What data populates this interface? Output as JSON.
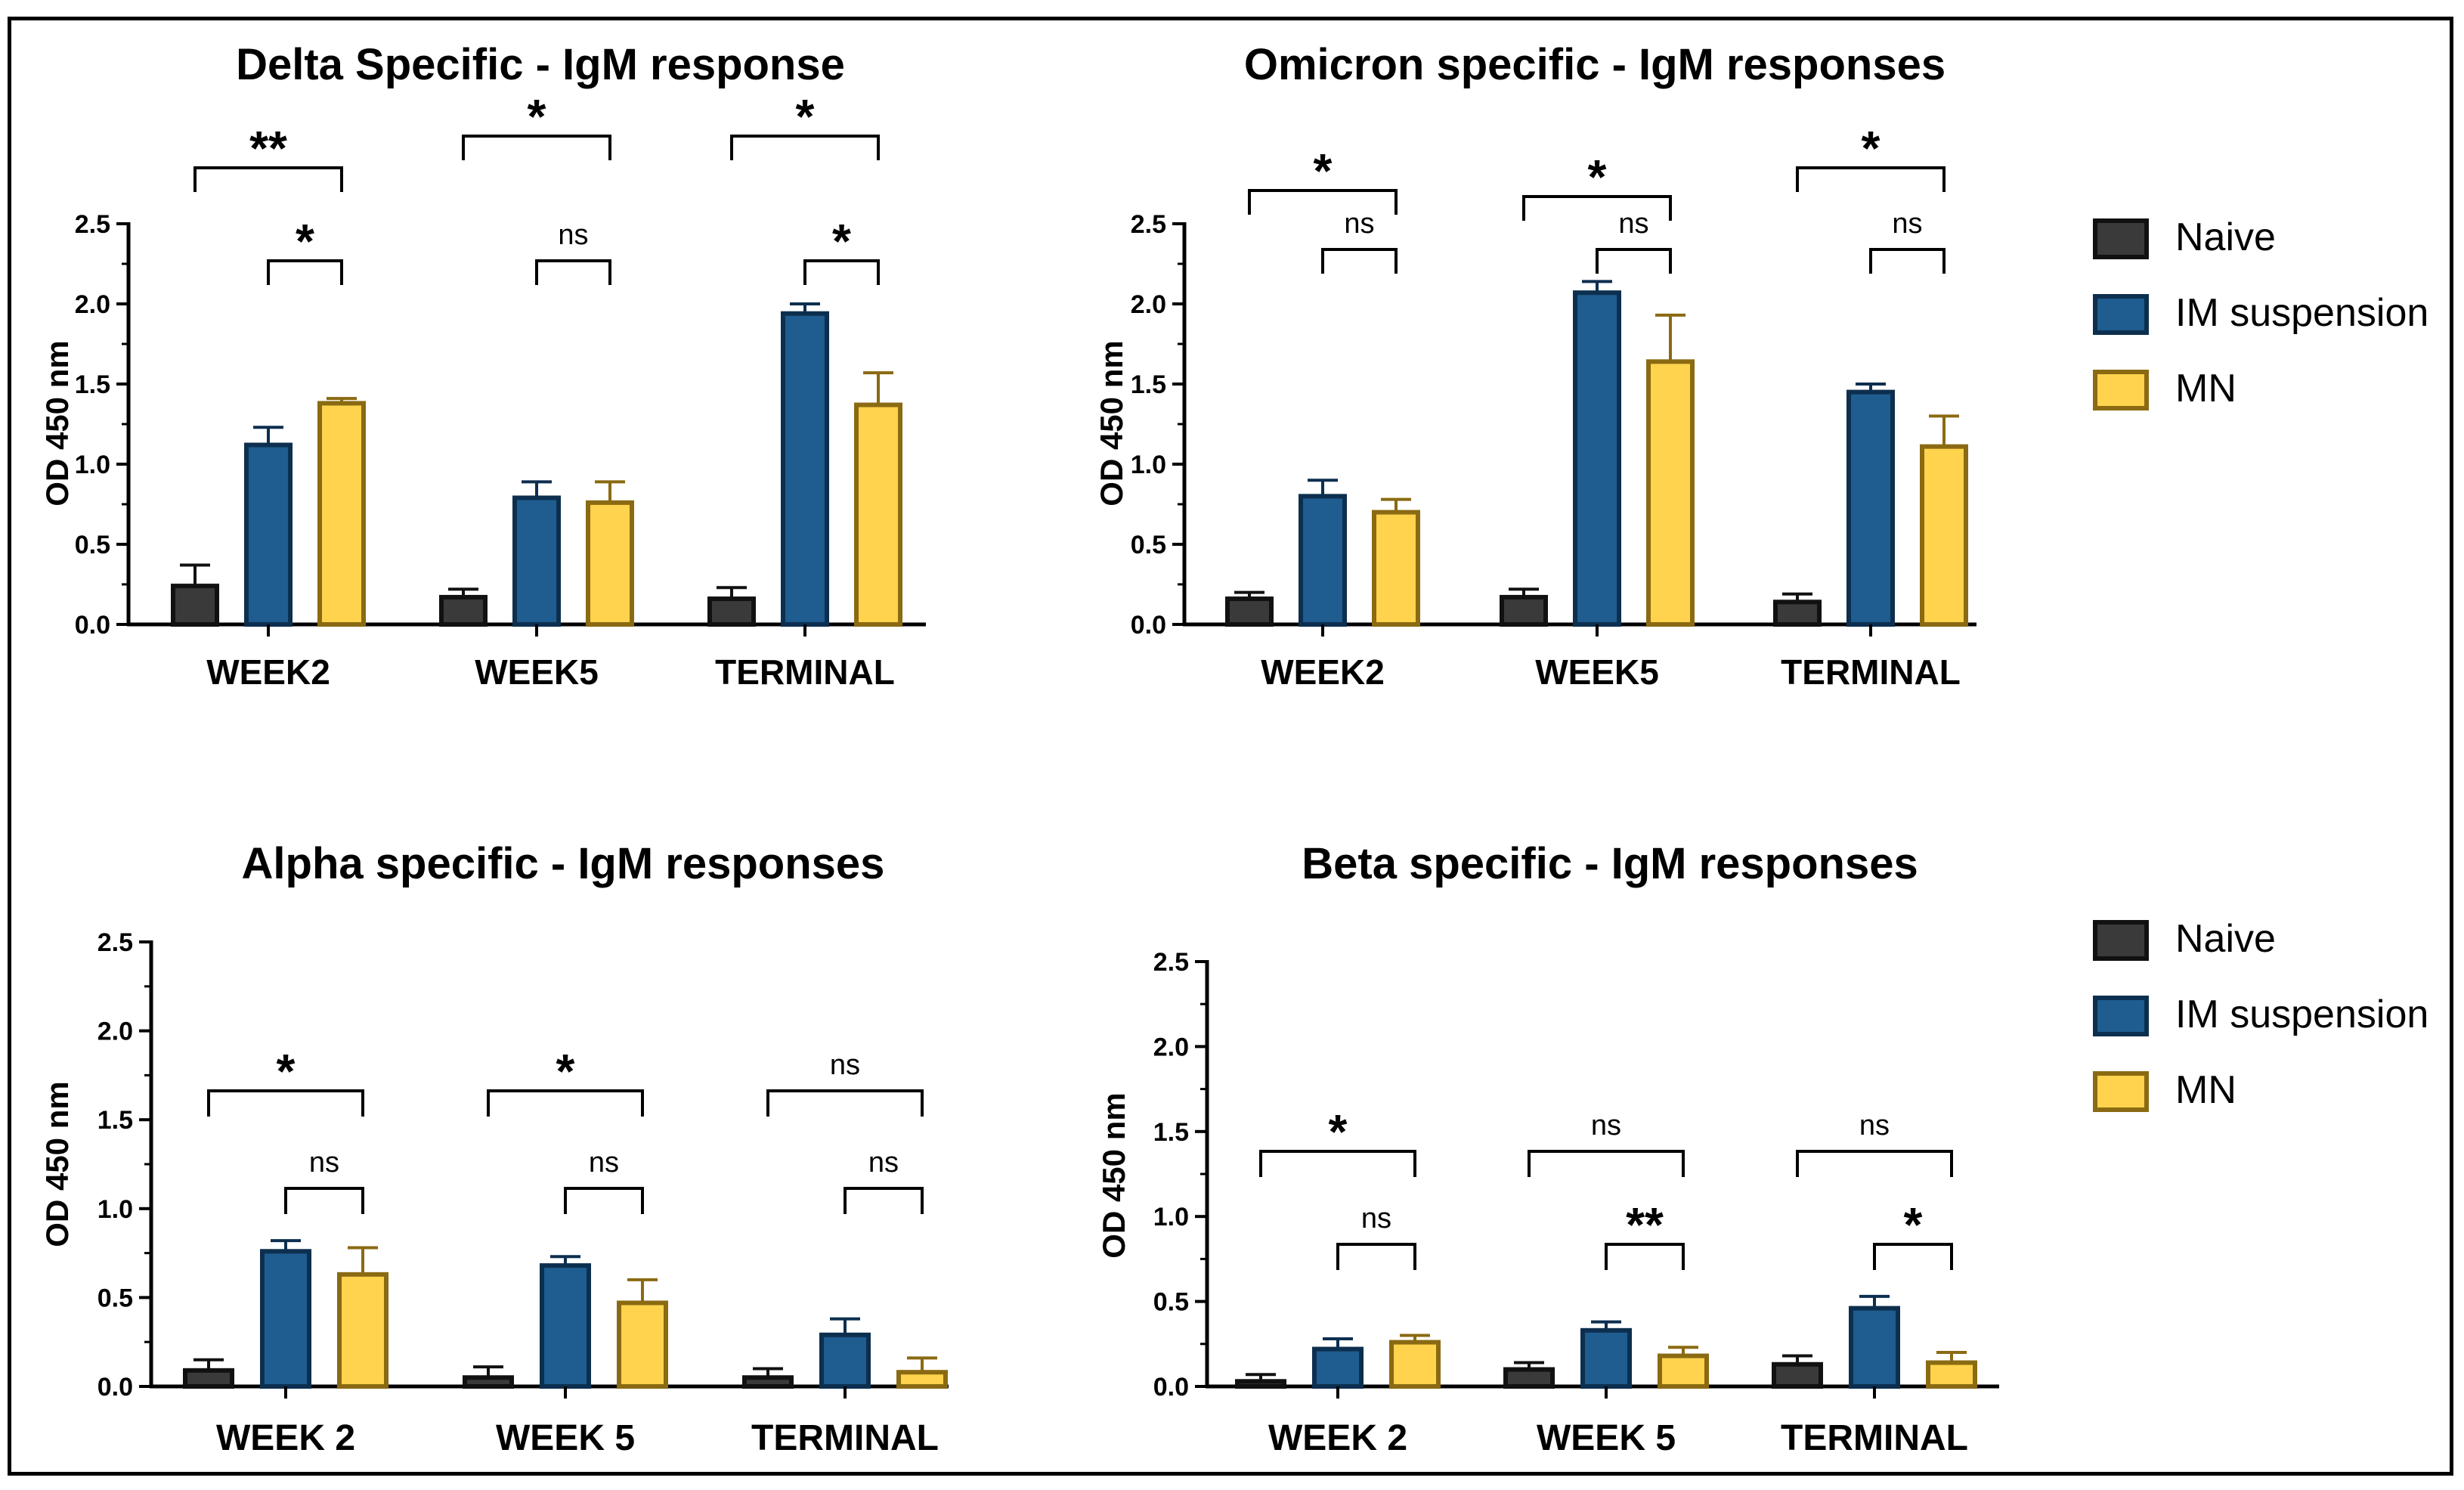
{
  "legend": {
    "entries": [
      {
        "name": "Naive",
        "fill": "#3a3a3a",
        "stroke": "#111111"
      },
      {
        "name": "IM suspension",
        "fill": "#1f5c8f",
        "stroke": "#0d2f4f"
      },
      {
        "name": "MN",
        "fill": "#ffd34d",
        "stroke": "#8a6a12"
      }
    ]
  },
  "chart_data": [
    {
      "type": "bar",
      "title": "Delta Specific - IgM response",
      "ylabel": "OD  450 nm",
      "xlabel": "",
      "ylim": [
        0,
        2.5
      ],
      "yticks": [
        "0.0",
        "0.5",
        "1.0",
        "1.5",
        "2.0",
        "2.5"
      ],
      "categories": [
        "WEEK2",
        "WEEK5",
        "TERMINAL"
      ],
      "series": [
        {
          "name": "Naive",
          "values": [
            0.24,
            0.17,
            0.16
          ],
          "errors": [
            0.13,
            0.05,
            0.07
          ]
        },
        {
          "name": "IM suspension",
          "values": [
            1.12,
            0.79,
            1.94
          ],
          "errors": [
            0.11,
            0.1,
            0.06
          ]
        },
        {
          "name": "MN",
          "values": [
            1.38,
            0.76,
            1.37
          ],
          "errors": [
            0.03,
            0.13,
            0.2
          ]
        }
      ],
      "brackets": [
        {
          "category": 0,
          "from": "Naive",
          "to": "MN",
          "label": "**"
        },
        {
          "category": 0,
          "from": "IM suspension",
          "to": "MN",
          "label": "*"
        },
        {
          "category": 1,
          "from": "Naive",
          "to": "MN",
          "label": "*"
        },
        {
          "category": 1,
          "from": "IM suspension",
          "to": "MN",
          "label": "ns"
        },
        {
          "category": 2,
          "from": "Naive",
          "to": "MN",
          "label": "*"
        },
        {
          "category": 2,
          "from": "IM suspension",
          "to": "MN",
          "label": "*"
        }
      ]
    },
    {
      "type": "bar",
      "title": "Omicron specific - IgM responses",
      "ylabel": "OD  450 nm",
      "xlabel": "",
      "ylim": [
        0,
        2.5
      ],
      "yticks": [
        "0.0",
        "0.5",
        "1.0",
        "1.5",
        "2.0",
        "2.5"
      ],
      "categories": [
        "WEEK2",
        "WEEK5",
        "TERMINAL"
      ],
      "series": [
        {
          "name": "Naive",
          "values": [
            0.16,
            0.17,
            0.14
          ],
          "errors": [
            0.04,
            0.05,
            0.05
          ]
        },
        {
          "name": "IM suspension",
          "values": [
            0.8,
            2.07,
            1.45
          ],
          "errors": [
            0.1,
            0.07,
            0.05
          ]
        },
        {
          "name": "MN",
          "values": [
            0.7,
            1.64,
            1.11
          ],
          "errors": [
            0.08,
            0.29,
            0.19
          ]
        }
      ],
      "brackets": [
        {
          "category": 0,
          "from": "Naive",
          "to": "MN",
          "label": "*"
        },
        {
          "category": 0,
          "from": "IM suspension",
          "to": "MN",
          "label": "ns"
        },
        {
          "category": 1,
          "from": "Naive",
          "to": "MN",
          "label": "*"
        },
        {
          "category": 1,
          "from": "IM suspension",
          "to": "MN",
          "label": "ns"
        },
        {
          "category": 2,
          "from": "Naive",
          "to": "MN",
          "label": "*"
        },
        {
          "category": 2,
          "from": "IM suspension",
          "to": "MN",
          "label": "ns"
        }
      ]
    },
    {
      "type": "bar",
      "title": "Alpha specific - IgM responses",
      "ylabel": "OD 450 nm",
      "xlabel": "",
      "ylim": [
        0,
        2.5
      ],
      "yticks": [
        "0.0",
        "0.5",
        "1.0",
        "1.5",
        "2.0",
        "2.5"
      ],
      "categories": [
        "WEEK 2",
        "WEEK 5",
        "TERMINAL"
      ],
      "series": [
        {
          "name": "Naive",
          "values": [
            0.09,
            0.05,
            0.05
          ],
          "errors": [
            0.06,
            0.06,
            0.05
          ]
        },
        {
          "name": "IM suspension",
          "values": [
            0.76,
            0.68,
            0.29
          ],
          "errors": [
            0.06,
            0.05,
            0.09
          ]
        },
        {
          "name": "MN",
          "values": [
            0.63,
            0.47,
            0.08
          ],
          "errors": [
            0.15,
            0.13,
            0.08
          ]
        }
      ],
      "brackets": [
        {
          "category": 0,
          "from": "Naive",
          "to": "MN",
          "label": "*"
        },
        {
          "category": 0,
          "from": "IM suspension",
          "to": "MN",
          "label": "ns"
        },
        {
          "category": 1,
          "from": "Naive",
          "to": "MN",
          "label": "*"
        },
        {
          "category": 1,
          "from": "IM suspension",
          "to": "MN",
          "label": "ns"
        },
        {
          "category": 2,
          "from": "Naive",
          "to": "MN",
          "label": "ns"
        },
        {
          "category": 2,
          "from": "IM suspension",
          "to": "MN",
          "label": "ns"
        }
      ]
    },
    {
      "type": "bar",
      "title": "Beta specific - IgM  responses",
      "ylabel": "OD 450 nm",
      "xlabel": "",
      "ylim": [
        0,
        2.5
      ],
      "yticks": [
        "0.0",
        "0.5",
        "1.0",
        "1.5",
        "2.0",
        "2.5"
      ],
      "categories": [
        "WEEK 2",
        "WEEK 5",
        "TERMINAL"
      ],
      "series": [
        {
          "name": "Naive",
          "values": [
            0.03,
            0.1,
            0.13
          ],
          "errors": [
            0.04,
            0.04,
            0.05
          ]
        },
        {
          "name": "IM suspension",
          "values": [
            0.22,
            0.33,
            0.46
          ],
          "errors": [
            0.06,
            0.05,
            0.07
          ]
        },
        {
          "name": "MN",
          "values": [
            0.26,
            0.18,
            0.14
          ],
          "errors": [
            0.04,
            0.05,
            0.06
          ]
        }
      ],
      "brackets": [
        {
          "category": 0,
          "from": "Naive",
          "to": "MN",
          "label": "*"
        },
        {
          "category": 0,
          "from": "IM suspension",
          "to": "MN",
          "label": "ns"
        },
        {
          "category": 1,
          "from": "Naive",
          "to": "MN",
          "label": "ns"
        },
        {
          "category": 1,
          "from": "IM suspension",
          "to": "MN",
          "label": "**"
        },
        {
          "category": 2,
          "from": "Naive",
          "to": "MN",
          "label": "ns"
        },
        {
          "category": 2,
          "from": "IM suspension",
          "to": "MN",
          "label": "*"
        }
      ]
    }
  ]
}
